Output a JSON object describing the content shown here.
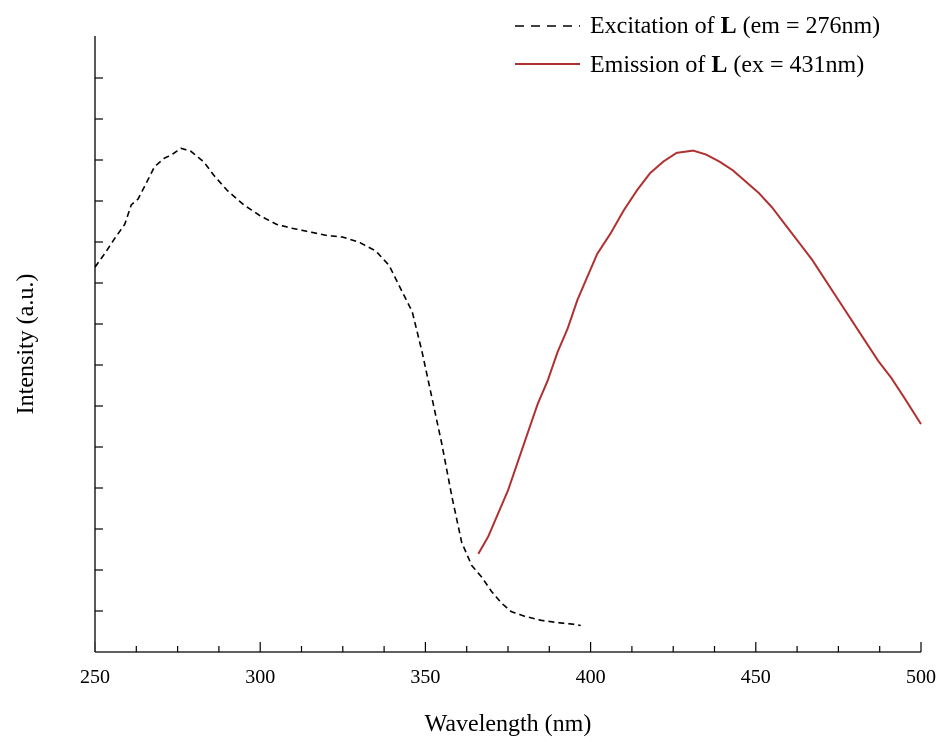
{
  "chart_data": {
    "type": "line",
    "xlabel": "Wavelength (nm)",
    "ylabel": "Intensity (a.u.)",
    "xlim": [
      250,
      500
    ],
    "ylim": [
      0,
      1.0
    ],
    "x_ticks": [
      "250",
      "300",
      "350",
      "400",
      "450",
      "500"
    ],
    "y_ticks_labeled": false,
    "grid": false,
    "legend_position": "top-right",
    "series": [
      {
        "name": "Excitation of L (em = 276nm)",
        "name_parts": {
          "prefix": "Excitation of ",
          "bold": "L",
          "suffix": " (em = 276nm)"
        },
        "style": "dashed",
        "color": "#000000",
        "points": [
          [
            250,
            0.667
          ],
          [
            253,
            0.691
          ],
          [
            256,
            0.717
          ],
          [
            259,
            0.741
          ],
          [
            261,
            0.775
          ],
          [
            263,
            0.785
          ],
          [
            265,
            0.807
          ],
          [
            268,
            0.841
          ],
          [
            271,
            0.856
          ],
          [
            273,
            0.861
          ],
          [
            276,
            0.873
          ],
          [
            279,
            0.868
          ],
          [
            283,
            0.849
          ],
          [
            286,
            0.826
          ],
          [
            290,
            0.8
          ],
          [
            295,
            0.775
          ],
          [
            300,
            0.756
          ],
          [
            305,
            0.741
          ],
          [
            310,
            0.734
          ],
          [
            315,
            0.728
          ],
          [
            320,
            0.722
          ],
          [
            325,
            0.719
          ],
          [
            330,
            0.71
          ],
          [
            335,
            0.695
          ],
          [
            339,
            0.67
          ],
          [
            343,
            0.624
          ],
          [
            346,
            0.59
          ],
          [
            349,
            0.52
          ],
          [
            352,
            0.44
          ],
          [
            355,
            0.36
          ],
          [
            358,
            0.27
          ],
          [
            361,
            0.19
          ],
          [
            364,
            0.15
          ],
          [
            367,
            0.13
          ],
          [
            370,
            0.105
          ],
          [
            373,
            0.085
          ],
          [
            376,
            0.07
          ],
          [
            380,
            0.062
          ],
          [
            385,
            0.055
          ],
          [
            390,
            0.051
          ],
          [
            395,
            0.048
          ],
          [
            397,
            0.046
          ]
        ]
      },
      {
        "name": "Emission of L (ex = 431nm)",
        "name_parts": {
          "prefix": "Emission of ",
          "bold": "L",
          "suffix": " (ex = 431nm)"
        },
        "style": "solid",
        "color": "#b03030",
        "points": [
          [
            366,
            0.17
          ],
          [
            369,
            0.2
          ],
          [
            372,
            0.24
          ],
          [
            375,
            0.28
          ],
          [
            378,
            0.33
          ],
          [
            381,
            0.38
          ],
          [
            384,
            0.43
          ],
          [
            387,
            0.47
          ],
          [
            390,
            0.52
          ],
          [
            393,
            0.56
          ],
          [
            396,
            0.61
          ],
          [
            399,
            0.65
          ],
          [
            402,
            0.69
          ],
          [
            406,
            0.725
          ],
          [
            410,
            0.765
          ],
          [
            414,
            0.8
          ],
          [
            418,
            0.83
          ],
          [
            422,
            0.85
          ],
          [
            426,
            0.865
          ],
          [
            431,
            0.869
          ],
          [
            435,
            0.862
          ],
          [
            439,
            0.85
          ],
          [
            443,
            0.835
          ],
          [
            447,
            0.815
          ],
          [
            451,
            0.795
          ],
          [
            455,
            0.77
          ],
          [
            459,
            0.74
          ],
          [
            463,
            0.71
          ],
          [
            467,
            0.68
          ],
          [
            471,
            0.645
          ],
          [
            475,
            0.61
          ],
          [
            479,
            0.575
          ],
          [
            483,
            0.54
          ],
          [
            487,
            0.505
          ],
          [
            491,
            0.475
          ],
          [
            495,
            0.44
          ],
          [
            500,
            0.395
          ]
        ]
      }
    ]
  }
}
